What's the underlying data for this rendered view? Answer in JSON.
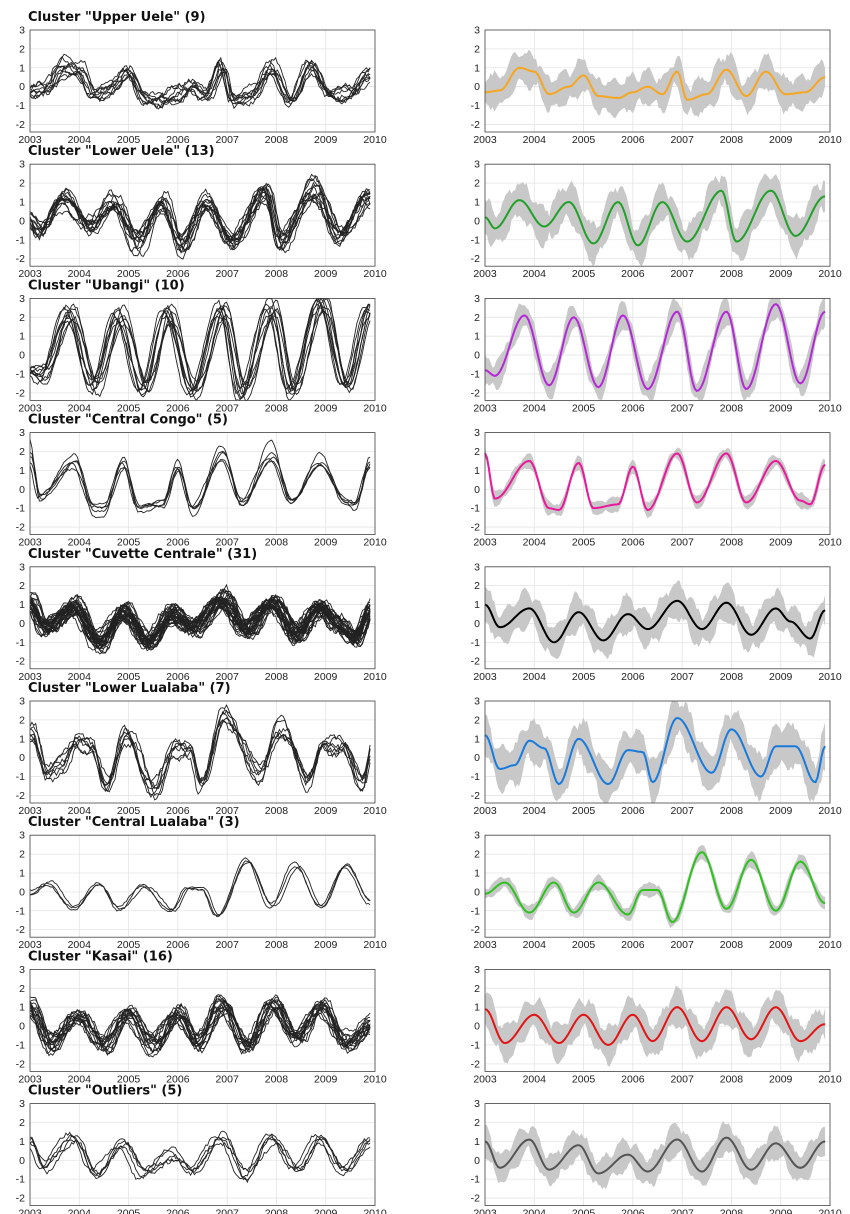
{
  "figure": {
    "band_color": "#c8c8c8",
    "raw_color": "#222222"
  },
  "chart_data": {
    "type": "line",
    "xlim": [
      2003,
      2010
    ],
    "ylim": [
      -2.4,
      3
    ],
    "x_ticks": [
      2003,
      2004,
      2005,
      2006,
      2007,
      2008,
      2009,
      2010
    ],
    "y_ticks": [
      -2,
      -1,
      0,
      1,
      2,
      3
    ],
    "grid": true,
    "clusters": [
      {
        "title": "Cluster \"Upper Uele\" (9)",
        "n": 9,
        "color": "#f5a623",
        "amplitude": 0.75,
        "phase": 0.7,
        "spread": 0.85,
        "start": 0.0,
        "mean_points": [
          [
            2003.0,
            -0.3
          ],
          [
            2003.3,
            -0.2
          ],
          [
            2003.7,
            1.0
          ],
          [
            2004.0,
            0.8
          ],
          [
            2004.3,
            -0.4
          ],
          [
            2004.7,
            0.0
          ],
          [
            2005.0,
            0.6
          ],
          [
            2005.3,
            -0.5
          ],
          [
            2005.7,
            -0.6
          ],
          [
            2006.0,
            -0.3
          ],
          [
            2006.3,
            0.0
          ],
          [
            2006.6,
            -0.4
          ],
          [
            2006.9,
            0.8
          ],
          [
            2007.1,
            -0.7
          ],
          [
            2007.5,
            -0.4
          ],
          [
            2007.9,
            0.9
          ],
          [
            2008.3,
            -0.5
          ],
          [
            2008.7,
            0.8
          ],
          [
            2009.1,
            -0.4
          ],
          [
            2009.5,
            -0.3
          ],
          [
            2009.9,
            0.5
          ]
        ]
      },
      {
        "title": "Cluster \"Lower Uele\" (13)",
        "n": 13,
        "color": "#22a02a",
        "amplitude": 1.3,
        "phase": 0.6,
        "spread": 0.95,
        "start": 0.0,
        "mean_points": [
          [
            2003.0,
            0.2
          ],
          [
            2003.2,
            -0.4
          ],
          [
            2003.7,
            1.1
          ],
          [
            2004.2,
            -0.3
          ],
          [
            2004.7,
            1.0
          ],
          [
            2005.2,
            -1.2
          ],
          [
            2005.7,
            1.0
          ],
          [
            2006.1,
            -1.3
          ],
          [
            2006.6,
            1.0
          ],
          [
            2007.1,
            -1.1
          ],
          [
            2007.8,
            1.6
          ],
          [
            2008.1,
            -1.1
          ],
          [
            2008.8,
            1.6
          ],
          [
            2009.3,
            -0.8
          ],
          [
            2009.9,
            1.3
          ]
        ]
      },
      {
        "title": "Cluster \"Ubangi\" (10)",
        "n": 10,
        "color": "#b429d6",
        "amplitude": 2.1,
        "phase": 0.85,
        "spread": 0.7,
        "start": 0.0,
        "mean_points": [
          [
            2003.0,
            -0.8
          ],
          [
            2003.2,
            -1.1
          ],
          [
            2003.8,
            2.1
          ],
          [
            2004.3,
            -1.6
          ],
          [
            2004.8,
            2.0
          ],
          [
            2005.3,
            -1.7
          ],
          [
            2005.8,
            2.1
          ],
          [
            2006.3,
            -1.8
          ],
          [
            2006.9,
            2.3
          ],
          [
            2007.3,
            -1.9
          ],
          [
            2007.9,
            2.3
          ],
          [
            2008.3,
            -1.8
          ],
          [
            2008.9,
            2.7
          ],
          [
            2009.4,
            -1.5
          ],
          [
            2009.9,
            2.3
          ]
        ]
      },
      {
        "title": "Cluster \"Central Congo\" (5)",
        "n": 5,
        "color": "#e8199a",
        "amplitude": 1.3,
        "phase": 0.95,
        "spread": 0.35,
        "start": 1.8,
        "mean_points": [
          [
            2003.0,
            1.9
          ],
          [
            2003.2,
            -0.5
          ],
          [
            2003.9,
            1.5
          ],
          [
            2004.3,
            -1.0
          ],
          [
            2004.5,
            -1.1
          ],
          [
            2004.9,
            1.4
          ],
          [
            2005.2,
            -1.0
          ],
          [
            2005.7,
            -0.8
          ],
          [
            2006.0,
            1.2
          ],
          [
            2006.3,
            -1.1
          ],
          [
            2006.9,
            1.9
          ],
          [
            2007.3,
            -0.7
          ],
          [
            2007.9,
            1.9
          ],
          [
            2008.3,
            -0.7
          ],
          [
            2008.9,
            1.5
          ],
          [
            2009.4,
            -0.6
          ],
          [
            2009.6,
            -0.8
          ],
          [
            2009.9,
            1.3
          ]
        ]
      },
      {
        "title": "Cluster \"Cuvette Centrale\" (31)",
        "n": 31,
        "color": "#000000",
        "amplitude": 0.85,
        "phase": 0.9,
        "spread": 0.9,
        "start": 1.0,
        "mean_points": [
          [
            2003.0,
            1.0
          ],
          [
            2003.3,
            -0.2
          ],
          [
            2003.9,
            0.8
          ],
          [
            2004.4,
            -1.0
          ],
          [
            2004.9,
            0.6
          ],
          [
            2005.4,
            -0.9
          ],
          [
            2005.9,
            0.5
          ],
          [
            2006.3,
            -0.3
          ],
          [
            2006.9,
            1.2
          ],
          [
            2007.4,
            -0.3
          ],
          [
            2007.9,
            1.1
          ],
          [
            2008.4,
            -0.6
          ],
          [
            2008.9,
            0.8
          ],
          [
            2009.2,
            0.1
          ],
          [
            2009.6,
            -0.8
          ],
          [
            2009.9,
            0.7
          ]
        ]
      },
      {
        "title": "Cluster \"Lower Lualaba\" (7)",
        "n": 7,
        "color": "#1a7adb",
        "amplitude": 0.9,
        "phase": 0.95,
        "spread": 1.05,
        "start": 1.2,
        "mean_points": [
          [
            2003.0,
            1.2
          ],
          [
            2003.3,
            -0.6
          ],
          [
            2003.6,
            -0.4
          ],
          [
            2003.9,
            0.9
          ],
          [
            2004.2,
            0.5
          ],
          [
            2004.5,
            -1.4
          ],
          [
            2004.9,
            1.0
          ],
          [
            2005.5,
            -1.4
          ],
          [
            2005.9,
            0.4
          ],
          [
            2006.2,
            0.3
          ],
          [
            2006.4,
            -1.3
          ],
          [
            2006.9,
            2.1
          ],
          [
            2007.6,
            -0.8
          ],
          [
            2008.0,
            1.5
          ],
          [
            2008.6,
            -1.0
          ],
          [
            2008.9,
            0.6
          ],
          [
            2009.3,
            0.6
          ],
          [
            2009.7,
            -1.3
          ],
          [
            2009.9,
            0.6
          ]
        ]
      },
      {
        "title": "Cluster \"Central Lualaba\" (3)",
        "n": 3,
        "color": "#2ec21f",
        "amplitude": 0.9,
        "phase": 0.4,
        "spread": 0.35,
        "start": 0.0,
        "mean_points": [
          [
            2003.0,
            -0.1
          ],
          [
            2003.4,
            0.5
          ],
          [
            2003.9,
            -1.1
          ],
          [
            2004.4,
            0.5
          ],
          [
            2004.8,
            -1.1
          ],
          [
            2005.3,
            0.5
          ],
          [
            2005.9,
            -1.2
          ],
          [
            2006.2,
            0.1
          ],
          [
            2006.5,
            0.1
          ],
          [
            2006.8,
            -1.6
          ],
          [
            2007.4,
            2.1
          ],
          [
            2007.9,
            -0.9
          ],
          [
            2008.4,
            1.7
          ],
          [
            2008.9,
            -1.0
          ],
          [
            2009.4,
            1.6
          ],
          [
            2009.9,
            -0.6
          ]
        ]
      },
      {
        "title": "Cluster \"Kasai\" (16)",
        "n": 16,
        "color": "#e01515",
        "amplitude": 0.9,
        "phase": 0.95,
        "spread": 0.9,
        "start": 0.8,
        "mean_points": [
          [
            2003.0,
            0.9
          ],
          [
            2003.4,
            -0.9
          ],
          [
            2004.0,
            0.6
          ],
          [
            2004.5,
            -0.9
          ],
          [
            2005.0,
            0.6
          ],
          [
            2005.5,
            -1.0
          ],
          [
            2006.0,
            0.6
          ],
          [
            2006.4,
            -0.8
          ],
          [
            2006.9,
            1.0
          ],
          [
            2007.4,
            -0.8
          ],
          [
            2007.9,
            1.0
          ],
          [
            2008.4,
            -0.7
          ],
          [
            2008.9,
            1.0
          ],
          [
            2009.4,
            -0.8
          ],
          [
            2009.9,
            0.1
          ]
        ]
      },
      {
        "title": "Cluster \"Outliers\" (5)",
        "n": 5,
        "color": "#555555",
        "amplitude": 0.8,
        "phase": 0.9,
        "spread": 0.75,
        "start": 1.0,
        "mean_points": [
          [
            2003.0,
            1.0
          ],
          [
            2003.3,
            -0.4
          ],
          [
            2003.9,
            1.1
          ],
          [
            2004.3,
            -0.5
          ],
          [
            2004.9,
            0.8
          ],
          [
            2005.3,
            -0.7
          ],
          [
            2005.9,
            0.3
          ],
          [
            2006.3,
            -0.6
          ],
          [
            2006.9,
            1.1
          ],
          [
            2007.4,
            -0.6
          ],
          [
            2007.9,
            1.2
          ],
          [
            2008.4,
            -0.5
          ],
          [
            2008.9,
            0.9
          ],
          [
            2009.4,
            -0.4
          ],
          [
            2009.9,
            1.0
          ]
        ]
      }
    ]
  }
}
